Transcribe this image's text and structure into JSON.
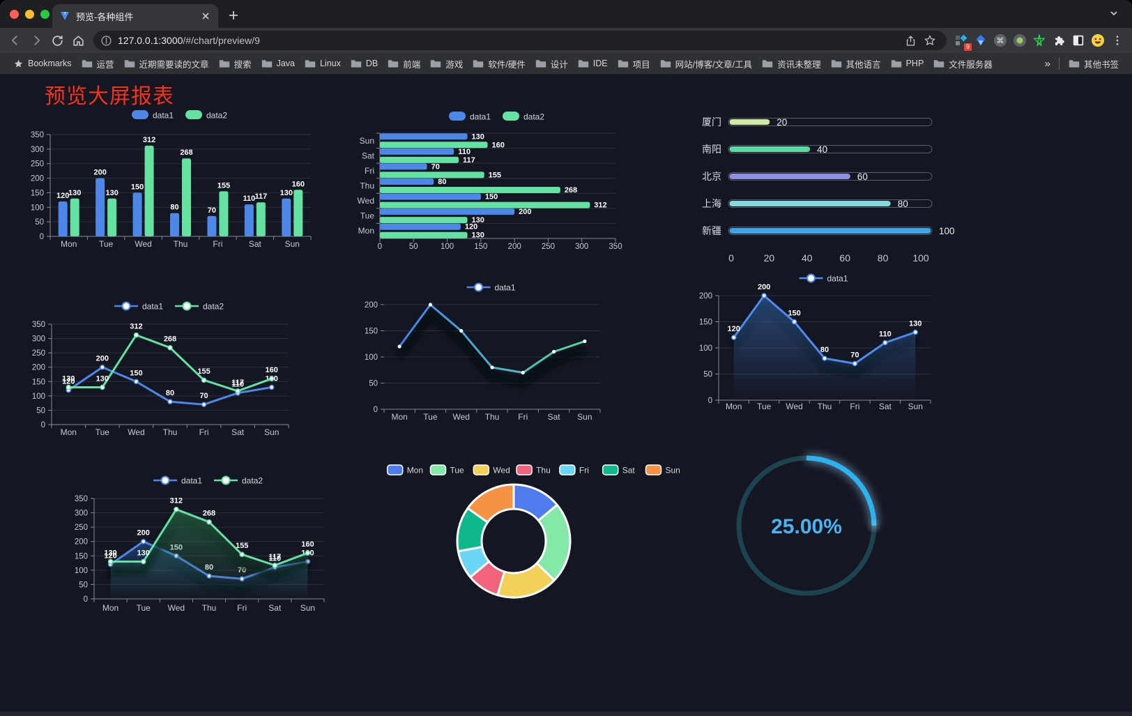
{
  "browser": {
    "tab": {
      "title": "预览-各种组件"
    },
    "url": {
      "host": "127.0.0.1:3000",
      "path": "/#/chart/preview/9"
    },
    "bookmarks_label": "Bookmarks",
    "bookmarks": [
      "运营",
      "近期需要读的文章",
      "搜索",
      "Java",
      "Linux",
      "DB",
      "前端",
      "游戏",
      "软件/硬件",
      "设计",
      "IDE",
      "项目",
      "网站/博客/文章/工具",
      "资讯未整理",
      "其他语言",
      "PHP",
      "文件服务器"
    ],
    "bookmarks_overflow": "»",
    "other_bookmarks": "其他书签",
    "extension_badge": "9"
  },
  "page": {
    "title": "预览大屏报表",
    "title_color": "#f5321d",
    "background": "#141622"
  },
  "chart_data": [
    {
      "id": "bar",
      "type": "bar",
      "categories": [
        "Mon",
        "Tue",
        "Wed",
        "Thu",
        "Fri",
        "Sat",
        "Sun"
      ],
      "series": [
        {
          "name": "data1",
          "color": "#4d87e8",
          "values": [
            120,
            200,
            150,
            80,
            70,
            110,
            130
          ]
        },
        {
          "name": "data2",
          "color": "#63e2a2",
          "values": [
            130,
            130,
            312,
            268,
            155,
            117,
            160
          ]
        }
      ],
      "ylim": [
        0,
        350
      ],
      "ytick": 50,
      "legend_position": "top",
      "grid": true
    },
    {
      "id": "hbar",
      "type": "bar-horizontal",
      "categories": [
        "Mon",
        "Tue",
        "Wed",
        "Thu",
        "Fri",
        "Sat",
        "Sun"
      ],
      "series": [
        {
          "name": "data1",
          "color": "#4d87e8",
          "values": [
            120,
            200,
            150,
            80,
            70,
            110,
            130
          ]
        },
        {
          "name": "data2",
          "color": "#63e2a2",
          "values": [
            130,
            130,
            312,
            268,
            155,
            117,
            160
          ]
        }
      ],
      "xlim": [
        0,
        350
      ],
      "xtick": 50,
      "legend_position": "top",
      "grid": true
    },
    {
      "id": "capsule",
      "type": "progress-bars",
      "categories": [
        "厦门",
        "南阳",
        "北京",
        "上海",
        "新疆"
      ],
      "values": [
        20,
        40,
        60,
        80,
        100
      ],
      "colors": [
        "#cfe9a2",
        "#5bd9a5",
        "#908fe8",
        "#83d8da",
        "#3aa5ea"
      ],
      "xlim": [
        0,
        100
      ],
      "xticks": [
        0,
        20,
        40,
        60,
        80,
        100
      ]
    },
    {
      "id": "line2",
      "type": "line",
      "categories": [
        "Mon",
        "Tue",
        "Wed",
        "Thu",
        "Fri",
        "Sat",
        "Sun"
      ],
      "series": [
        {
          "name": "data1",
          "color": "#4d87e8",
          "values": [
            120,
            200,
            150,
            80,
            70,
            110,
            130
          ],
          "ring": true
        },
        {
          "name": "data2",
          "color": "#63e2a2",
          "values": [
            130,
            130,
            312,
            268,
            155,
            117,
            160
          ],
          "ring": true
        }
      ],
      "ylim": [
        0,
        350
      ],
      "ytick": 50,
      "show_labels": true,
      "legend_position": "top",
      "grid": true
    },
    {
      "id": "linegrad",
      "type": "line",
      "categories": [
        "Mon",
        "Tue",
        "Wed",
        "Thu",
        "Fri",
        "Sat",
        "Sun"
      ],
      "series": [
        {
          "name": "data1",
          "color": "#4d87e8",
          "gradient": [
            "#3f80f0",
            "#54dd9c"
          ],
          "values": [
            120,
            200,
            150,
            80,
            70,
            110,
            130
          ],
          "shadow": true
        }
      ],
      "ylim": [
        0,
        200
      ],
      "ytick": 50,
      "show_labels": false,
      "legend_position": "top",
      "grid": true
    },
    {
      "id": "area1",
      "type": "line",
      "categories": [
        "Mon",
        "Tue",
        "Wed",
        "Thu",
        "Fri",
        "Sat",
        "Sun"
      ],
      "series": [
        {
          "name": "data1",
          "color": "#4a8cf0",
          "values": [
            120,
            200,
            150,
            80,
            70,
            110,
            130
          ],
          "ring": true,
          "area": [
            "rgba(60,110,185,0.55)",
            "rgba(60,110,185,0)"
          ],
          "shadow": true
        }
      ],
      "ylim": [
        0,
        200
      ],
      "ytick": 50,
      "show_labels": true,
      "legend_position": "top",
      "grid": true
    },
    {
      "id": "area2",
      "type": "line",
      "categories": [
        "Mon",
        "Tue",
        "Wed",
        "Thu",
        "Fri",
        "Sat",
        "Sun"
      ],
      "series": [
        {
          "name": "data1",
          "color": "#4d87e8",
          "values": [
            120,
            200,
            150,
            80,
            70,
            110,
            130
          ],
          "ring": true,
          "area": [
            "rgba(45,90,160,0.55)",
            "rgba(45,90,160,0)"
          ],
          "shadow": true
        },
        {
          "name": "data2",
          "color": "#63e2a2",
          "values": [
            130,
            130,
            312,
            268,
            155,
            117,
            160
          ],
          "ring": true,
          "area": [
            "rgba(45,120,80,0.60)",
            "rgba(45,120,80,0)"
          ],
          "shadow": true
        }
      ],
      "ylim": [
        0,
        350
      ],
      "ytick": 50,
      "show_labels": true,
      "legend_position": "top",
      "grid": true
    },
    {
      "id": "pie",
      "type": "pie",
      "categories": [
        "Mon",
        "Tue",
        "Wed",
        "Thu",
        "Fri",
        "Sat",
        "Sun"
      ],
      "values": [
        120,
        200,
        150,
        80,
        70,
        110,
        130
      ],
      "colors": [
        "#4e7cec",
        "#83e8a8",
        "#f2d158",
        "#f2647c",
        "#6cd6f7",
        "#0fb98c",
        "#f59244"
      ],
      "legend_position": "top",
      "donut": true
    },
    {
      "id": "gauge",
      "type": "gauge",
      "value": 25,
      "label": "25.00%",
      "track_color": "#1c4350",
      "arc_color": "#2bb3ef",
      "text_color": "#48b4f2"
    }
  ]
}
